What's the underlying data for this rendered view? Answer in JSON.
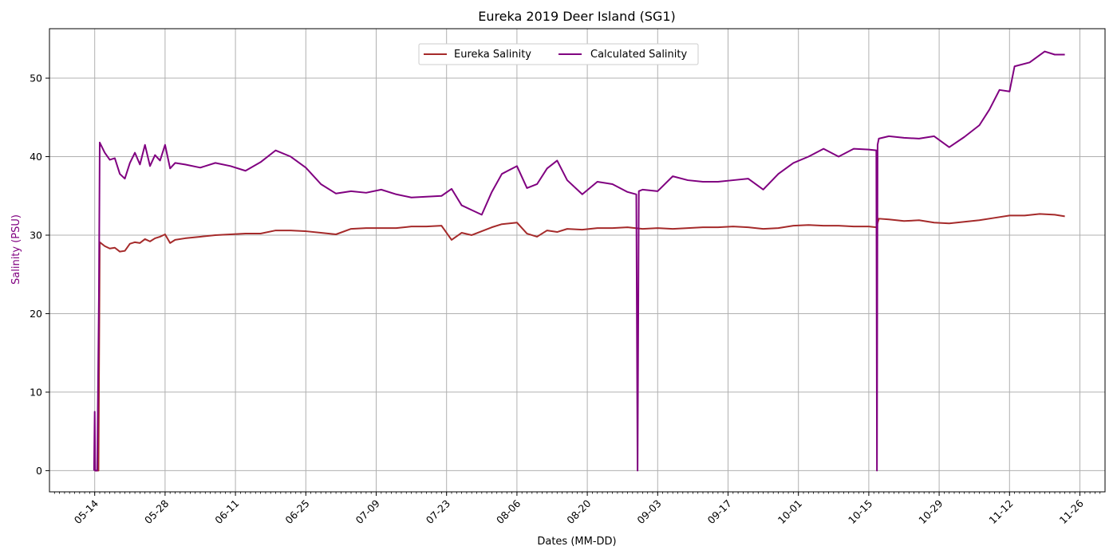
{
  "chart_data": {
    "type": "line",
    "title": "Eureka 2019 Deer Island (SG1)",
    "xlabel": "Dates (MM-DD)",
    "ylabel": "Salinity (PSU)",
    "x_axis_type": "date",
    "xlim": [
      "2019-05-05",
      "2019-12-01"
    ],
    "ylim": [
      -2.7,
      56.3
    ],
    "x_ticks": [
      {
        "date": "2019-05-14",
        "label": "05-14"
      },
      {
        "date": "2019-05-28",
        "label": "05-28"
      },
      {
        "date": "2019-06-11",
        "label": "06-11"
      },
      {
        "date": "2019-06-25",
        "label": "06-25"
      },
      {
        "date": "2019-07-09",
        "label": "07-09"
      },
      {
        "date": "2019-07-23",
        "label": "07-23"
      },
      {
        "date": "2019-08-06",
        "label": "08-06"
      },
      {
        "date": "2019-08-20",
        "label": "08-20"
      },
      {
        "date": "2019-09-03",
        "label": "09-03"
      },
      {
        "date": "2019-09-17",
        "label": "09-17"
      },
      {
        "date": "2019-10-01",
        "label": "10-01"
      },
      {
        "date": "2019-10-15",
        "label": "10-15"
      },
      {
        "date": "2019-10-29",
        "label": "10-29"
      },
      {
        "date": "2019-11-12",
        "label": "11-12"
      },
      {
        "date": "2019-11-26",
        "label": "11-26"
      }
    ],
    "y_ticks": [
      0,
      10,
      20,
      30,
      40,
      50
    ],
    "grid": true,
    "legend_position": "upper-center",
    "series": [
      {
        "name": "Eureka Salinity",
        "color": "#a52a2a",
        "points": [
          [
            "2019-05-14T00:00",
            0
          ],
          [
            "2019-05-14T18:00",
            0
          ],
          [
            "2019-05-15T00:00",
            29.1
          ],
          [
            "2019-05-16T00:00",
            28.6
          ],
          [
            "2019-05-17T00:00",
            28.3
          ],
          [
            "2019-05-18T00:00",
            28.4
          ],
          [
            "2019-05-19T00:00",
            27.9
          ],
          [
            "2019-05-20T00:00",
            28.0
          ],
          [
            "2019-05-21T00:00",
            28.9
          ],
          [
            "2019-05-22T00:00",
            29.1
          ],
          [
            "2019-05-23T00:00",
            29.0
          ],
          [
            "2019-05-24T00:00",
            29.5
          ],
          [
            "2019-05-25T00:00",
            29.2
          ],
          [
            "2019-05-26T00:00",
            29.6
          ],
          [
            "2019-05-27T00:00",
            29.8
          ],
          [
            "2019-05-28T00:00",
            30.1
          ],
          [
            "2019-05-29T00:00",
            29.0
          ],
          [
            "2019-05-30T00:00",
            29.4
          ],
          [
            "2019-06-01T00:00",
            29.6
          ],
          [
            "2019-06-04T00:00",
            29.8
          ],
          [
            "2019-06-07T00:00",
            30.0
          ],
          [
            "2019-06-10T00:00",
            30.1
          ],
          [
            "2019-06-13T00:00",
            30.2
          ],
          [
            "2019-06-16T00:00",
            30.2
          ],
          [
            "2019-06-19T00:00",
            30.6
          ],
          [
            "2019-06-22T00:00",
            30.6
          ],
          [
            "2019-06-25T00:00",
            30.5
          ],
          [
            "2019-06-28T00:00",
            30.3
          ],
          [
            "2019-07-01T00:00",
            30.1
          ],
          [
            "2019-07-04T00:00",
            30.8
          ],
          [
            "2019-07-07T00:00",
            30.9
          ],
          [
            "2019-07-10T00:00",
            30.9
          ],
          [
            "2019-07-13T00:00",
            30.9
          ],
          [
            "2019-07-16T00:00",
            31.1
          ],
          [
            "2019-07-19T00:00",
            31.1
          ],
          [
            "2019-07-22T00:00",
            31.2
          ],
          [
            "2019-07-24T00:00",
            29.4
          ],
          [
            "2019-07-26T00:00",
            30.3
          ],
          [
            "2019-07-28T00:00",
            30.0
          ],
          [
            "2019-07-30T00:00",
            30.5
          ],
          [
            "2019-08-01T00:00",
            31.0
          ],
          [
            "2019-08-03T00:00",
            31.4
          ],
          [
            "2019-08-06T00:00",
            31.6
          ],
          [
            "2019-08-08T00:00",
            30.2
          ],
          [
            "2019-08-10T00:00",
            29.8
          ],
          [
            "2019-08-12T00:00",
            30.6
          ],
          [
            "2019-08-14T00:00",
            30.4
          ],
          [
            "2019-08-16T00:00",
            30.8
          ],
          [
            "2019-08-19T00:00",
            30.7
          ],
          [
            "2019-08-22T00:00",
            30.9
          ],
          [
            "2019-08-25T00:00",
            30.9
          ],
          [
            "2019-08-28T00:00",
            31.0
          ],
          [
            "2019-08-31T00:00",
            30.8
          ],
          [
            "2019-09-03T00:00",
            30.9
          ],
          [
            "2019-09-06T00:00",
            30.8
          ],
          [
            "2019-09-09T00:00",
            30.9
          ],
          [
            "2019-09-12T00:00",
            31.0
          ],
          [
            "2019-09-15T00:00",
            31.0
          ],
          [
            "2019-09-18T00:00",
            31.1
          ],
          [
            "2019-09-21T00:00",
            31.0
          ],
          [
            "2019-09-24T00:00",
            30.8
          ],
          [
            "2019-09-27T00:00",
            30.9
          ],
          [
            "2019-09-30T00:00",
            31.2
          ],
          [
            "2019-10-03T00:00",
            31.3
          ],
          [
            "2019-10-06T00:00",
            31.2
          ],
          [
            "2019-10-09T00:00",
            31.2
          ],
          [
            "2019-10-12T00:00",
            31.1
          ],
          [
            "2019-10-15T00:00",
            31.1
          ],
          [
            "2019-10-16T12:00",
            31.0
          ],
          [
            "2019-10-17T00:00",
            32.1
          ],
          [
            "2019-10-19T00:00",
            32.0
          ],
          [
            "2019-10-22T00:00",
            31.8
          ],
          [
            "2019-10-25T00:00",
            31.9
          ],
          [
            "2019-10-28T00:00",
            31.6
          ],
          [
            "2019-10-31T00:00",
            31.5
          ],
          [
            "2019-11-03T00:00",
            31.7
          ],
          [
            "2019-11-06T00:00",
            31.9
          ],
          [
            "2019-11-09T00:00",
            32.2
          ],
          [
            "2019-11-12T00:00",
            32.5
          ],
          [
            "2019-11-15T00:00",
            32.5
          ],
          [
            "2019-11-18T00:00",
            32.7
          ],
          [
            "2019-11-21T00:00",
            32.6
          ],
          [
            "2019-11-23T00:00",
            32.4
          ]
        ]
      },
      {
        "name": "Calculated Salinity",
        "color": "#800080",
        "points": [
          [
            "2019-05-13T21:00",
            0
          ],
          [
            "2019-05-14T00:00",
            7.5
          ],
          [
            "2019-05-14T02:00",
            0
          ],
          [
            "2019-05-14T12:00",
            0
          ],
          [
            "2019-05-14T20:00",
            22.0
          ],
          [
            "2019-05-15T00:00",
            41.8
          ],
          [
            "2019-05-16T00:00",
            40.5
          ],
          [
            "2019-05-17T00:00",
            39.6
          ],
          [
            "2019-05-18T00:00",
            39.8
          ],
          [
            "2019-05-19T00:00",
            37.8
          ],
          [
            "2019-05-20T00:00",
            37.2
          ],
          [
            "2019-05-21T00:00",
            39.2
          ],
          [
            "2019-05-22T00:00",
            40.5
          ],
          [
            "2019-05-23T00:00",
            39.0
          ],
          [
            "2019-05-24T00:00",
            41.5
          ],
          [
            "2019-05-25T00:00",
            38.8
          ],
          [
            "2019-05-26T00:00",
            40.2
          ],
          [
            "2019-05-27T00:00",
            39.5
          ],
          [
            "2019-05-28T00:00",
            41.5
          ],
          [
            "2019-05-29T00:00",
            38.5
          ],
          [
            "2019-05-30T00:00",
            39.2
          ],
          [
            "2019-06-01T00:00",
            39.0
          ],
          [
            "2019-06-04T00:00",
            38.6
          ],
          [
            "2019-06-07T00:00",
            39.2
          ],
          [
            "2019-06-10T00:00",
            38.8
          ],
          [
            "2019-06-13T00:00",
            38.2
          ],
          [
            "2019-06-16T00:00",
            39.3
          ],
          [
            "2019-06-19T00:00",
            40.8
          ],
          [
            "2019-06-22T00:00",
            40.0
          ],
          [
            "2019-06-25T00:00",
            38.6
          ],
          [
            "2019-06-28T00:00",
            36.5
          ],
          [
            "2019-07-01T00:00",
            35.3
          ],
          [
            "2019-07-04T00:00",
            35.6
          ],
          [
            "2019-07-07T00:00",
            35.4
          ],
          [
            "2019-07-10T00:00",
            35.8
          ],
          [
            "2019-07-13T00:00",
            35.2
          ],
          [
            "2019-07-16T00:00",
            34.8
          ],
          [
            "2019-07-19T00:00",
            34.9
          ],
          [
            "2019-07-22T00:00",
            35.0
          ],
          [
            "2019-07-24T00:00",
            35.9
          ],
          [
            "2019-07-26T00:00",
            33.8
          ],
          [
            "2019-07-28T00:00",
            33.2
          ],
          [
            "2019-07-30T00:00",
            32.6
          ],
          [
            "2019-08-01T00:00",
            35.5
          ],
          [
            "2019-08-03T00:00",
            37.8
          ],
          [
            "2019-08-06T00:00",
            38.8
          ],
          [
            "2019-08-08T00:00",
            36.0
          ],
          [
            "2019-08-10T00:00",
            36.5
          ],
          [
            "2019-08-12T00:00",
            38.5
          ],
          [
            "2019-08-14T00:00",
            39.5
          ],
          [
            "2019-08-16T00:00",
            37.0
          ],
          [
            "2019-08-19T00:00",
            35.2
          ],
          [
            "2019-08-22T00:00",
            36.8
          ],
          [
            "2019-08-25T00:00",
            36.5
          ],
          [
            "2019-08-28T00:00",
            35.5
          ],
          [
            "2019-08-29T18:00",
            35.2
          ],
          [
            "2019-08-30T00:00",
            0
          ],
          [
            "2019-08-30T06:00",
            35.6
          ],
          [
            "2019-08-31T00:00",
            35.8
          ],
          [
            "2019-09-03T00:00",
            35.6
          ],
          [
            "2019-09-06T00:00",
            37.5
          ],
          [
            "2019-09-09T00:00",
            37.0
          ],
          [
            "2019-09-12T00:00",
            36.8
          ],
          [
            "2019-09-15T00:00",
            36.8
          ],
          [
            "2019-09-18T00:00",
            37.0
          ],
          [
            "2019-09-21T00:00",
            37.2
          ],
          [
            "2019-09-24T00:00",
            35.8
          ],
          [
            "2019-09-27T00:00",
            37.8
          ],
          [
            "2019-09-30T00:00",
            39.2
          ],
          [
            "2019-10-03T00:00",
            40.0
          ],
          [
            "2019-10-06T00:00",
            41.0
          ],
          [
            "2019-10-09T00:00",
            40.0
          ],
          [
            "2019-10-12T00:00",
            41.0
          ],
          [
            "2019-10-15T00:00",
            40.9
          ],
          [
            "2019-10-16T12:00",
            40.8
          ],
          [
            "2019-10-16T15:00",
            0
          ],
          [
            "2019-10-16T18:00",
            41.5
          ],
          [
            "2019-10-17T00:00",
            42.3
          ],
          [
            "2019-10-19T00:00",
            42.6
          ],
          [
            "2019-10-22T00:00",
            42.4
          ],
          [
            "2019-10-25T00:00",
            42.3
          ],
          [
            "2019-10-28T00:00",
            42.6
          ],
          [
            "2019-10-31T00:00",
            41.2
          ],
          [
            "2019-11-03T00:00",
            42.5
          ],
          [
            "2019-11-06T00:00",
            44.0
          ],
          [
            "2019-11-08T00:00",
            46.0
          ],
          [
            "2019-11-10T00:00",
            48.5
          ],
          [
            "2019-11-12T00:00",
            48.3
          ],
          [
            "2019-11-13T00:00",
            51.5
          ],
          [
            "2019-11-16T00:00",
            52.0
          ],
          [
            "2019-11-19T00:00",
            53.4
          ],
          [
            "2019-11-21T00:00",
            53.0
          ],
          [
            "2019-11-23T00:00",
            53.0
          ]
        ]
      }
    ]
  }
}
